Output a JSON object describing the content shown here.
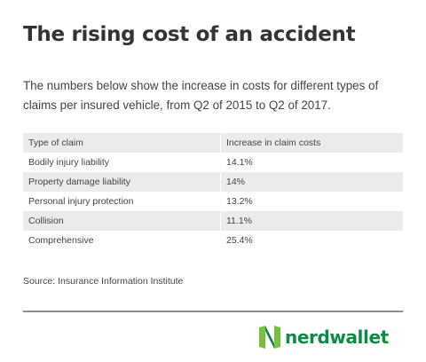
{
  "header": {
    "title": "The rising cost of an accident",
    "subtitle": "The numbers below show the increase in costs for different types of claims per insured vehicle, from Q2 of 2015 to Q2 of 2017."
  },
  "chart_data": {
    "type": "table",
    "columns": [
      "Type of claim",
      "Increase in claim costs"
    ],
    "rows": [
      {
        "claim": "Bodily injury liability",
        "increase": "14.1%",
        "value": 14.1
      },
      {
        "claim": "Property damage liability",
        "increase": "14%",
        "value": 14.0
      },
      {
        "claim": "Personal injury protection",
        "increase": "13.2%",
        "value": 13.2
      },
      {
        "claim": "Collision",
        "increase": "11.1%",
        "value": 11.1
      },
      {
        "claim": "Comprehensive",
        "increase": "25.4%",
        "value": 25.4
      }
    ],
    "row_shading": "alternating"
  },
  "footer": {
    "source": "Source: Insurance Information Institute",
    "brand": "nerdwallet",
    "brand_icon": "nerdwallet-logo-icon"
  },
  "colors": {
    "brand_green_dark": "#0d8a44",
    "brand_green_light": "#7ac142",
    "row_shade": "#ebebeb",
    "text": "#333333"
  }
}
